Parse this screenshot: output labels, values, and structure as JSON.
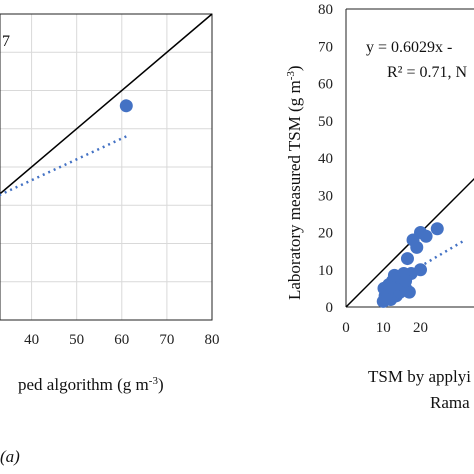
{
  "panels": [
    {
      "caption_fragment": "(a)",
      "annotation_fragment": "7",
      "chart_data": {
        "type": "scatter",
        "xlabel": "ped algorithm (g m-3)",
        "xlabel_main": "ped algorithm (g m",
        "xlabel_sup": "-3",
        "xlabel_close": ")",
        "ylabel": "",
        "x_ticks": [
          "40",
          "50",
          "60",
          "70",
          "80"
        ],
        "xlim": [
          33,
          80
        ],
        "ylim": [
          0,
          80
        ],
        "grid": true,
        "points": [
          {
            "x": 61,
            "y": 56
          }
        ],
        "identity_line": true,
        "trend_line": {
          "x1": 28,
          "y1": 30,
          "x2": 61,
          "y2": 48
        }
      }
    },
    {
      "annotation_eq": "y = 0.6029x -",
      "annotation_r2": "R² = 0.71, N",
      "chart_data": {
        "type": "scatter",
        "xlabel": "TSM by applyi",
        "xlabel_line2": "Rama",
        "ylabel": "Laboratory measured TSM (g m-3)",
        "ylabel_main": "Laboratory measured TSM (g m",
        "ylabel_sup": "-3",
        "ylabel_close": ")",
        "x_ticks": [
          "0",
          "10",
          "20"
        ],
        "y_ticks": [
          "0",
          "10",
          "20",
          "30",
          "40",
          "50",
          "60",
          "70",
          "80"
        ],
        "xlim": [
          0,
          80
        ],
        "ylim": [
          0,
          80
        ],
        "grid": false,
        "identity_line": true,
        "trend_line": {
          "x1": 10,
          "y1": 5,
          "x2": 32,
          "y2": 18
        },
        "points": [
          {
            "x": 10,
            "y": 1.5
          },
          {
            "x": 10.5,
            "y": 3
          },
          {
            "x": 11,
            "y": 4
          },
          {
            "x": 10.2,
            "y": 5
          },
          {
            "x": 11.5,
            "y": 6
          },
          {
            "x": 12,
            "y": 2
          },
          {
            "x": 12.5,
            "y": 7
          },
          {
            "x": 13,
            "y": 5
          },
          {
            "x": 13.5,
            "y": 3
          },
          {
            "x": 14,
            "y": 8
          },
          {
            "x": 14.5,
            "y": 4
          },
          {
            "x": 15,
            "y": 6
          },
          {
            "x": 15.5,
            "y": 9
          },
          {
            "x": 16,
            "y": 5
          },
          {
            "x": 16.5,
            "y": 13
          },
          {
            "x": 17,
            "y": 4
          },
          {
            "x": 17.5,
            "y": 9
          },
          {
            "x": 18,
            "y": 18
          },
          {
            "x": 19,
            "y": 16
          },
          {
            "x": 20,
            "y": 20
          },
          {
            "x": 20,
            "y": 10
          },
          {
            "x": 21.5,
            "y": 19
          },
          {
            "x": 24.5,
            "y": 21
          },
          {
            "x": 11,
            "y": 3.5
          },
          {
            "x": 12,
            "y": 5.5
          },
          {
            "x": 13,
            "y": 8.5
          },
          {
            "x": 10.8,
            "y": 2
          },
          {
            "x": 16,
            "y": 7
          }
        ]
      }
    }
  ],
  "colors": {
    "point": "#4472c4",
    "trend": "#4472c4",
    "identity": "#000000",
    "grid": "#d9d9d9"
  }
}
